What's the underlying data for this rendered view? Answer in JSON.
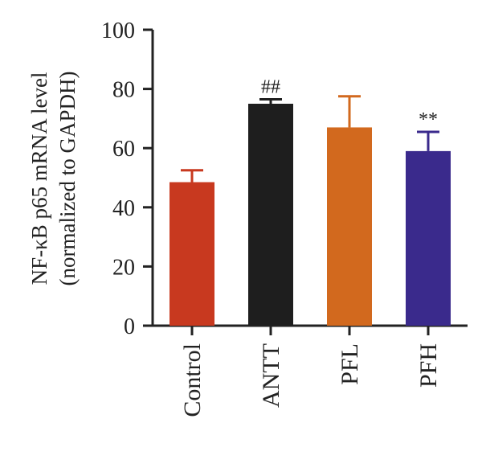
{
  "chart_data": {
    "type": "bar",
    "categories": [
      "Control",
      "ANTT",
      "PFL",
      "PFH"
    ],
    "values": [
      48.5,
      75,
      67,
      59
    ],
    "errors": [
      4,
      1.5,
      10.5,
      6.5
    ],
    "colors": [
      "#C8391F",
      "#1E1E1E",
      "#D2691E",
      "#3A2A8C"
    ],
    "annotations": [
      "",
      "##",
      "",
      "**"
    ],
    "ylabel_line1": "NF-κB p65 mRNA level",
    "ylabel_line2": "(normalized to GAPDH)",
    "ylim": [
      0,
      100
    ],
    "yticks": [
      "0",
      "20",
      "40",
      "60",
      "80",
      "100"
    ],
    "grid": false
  }
}
